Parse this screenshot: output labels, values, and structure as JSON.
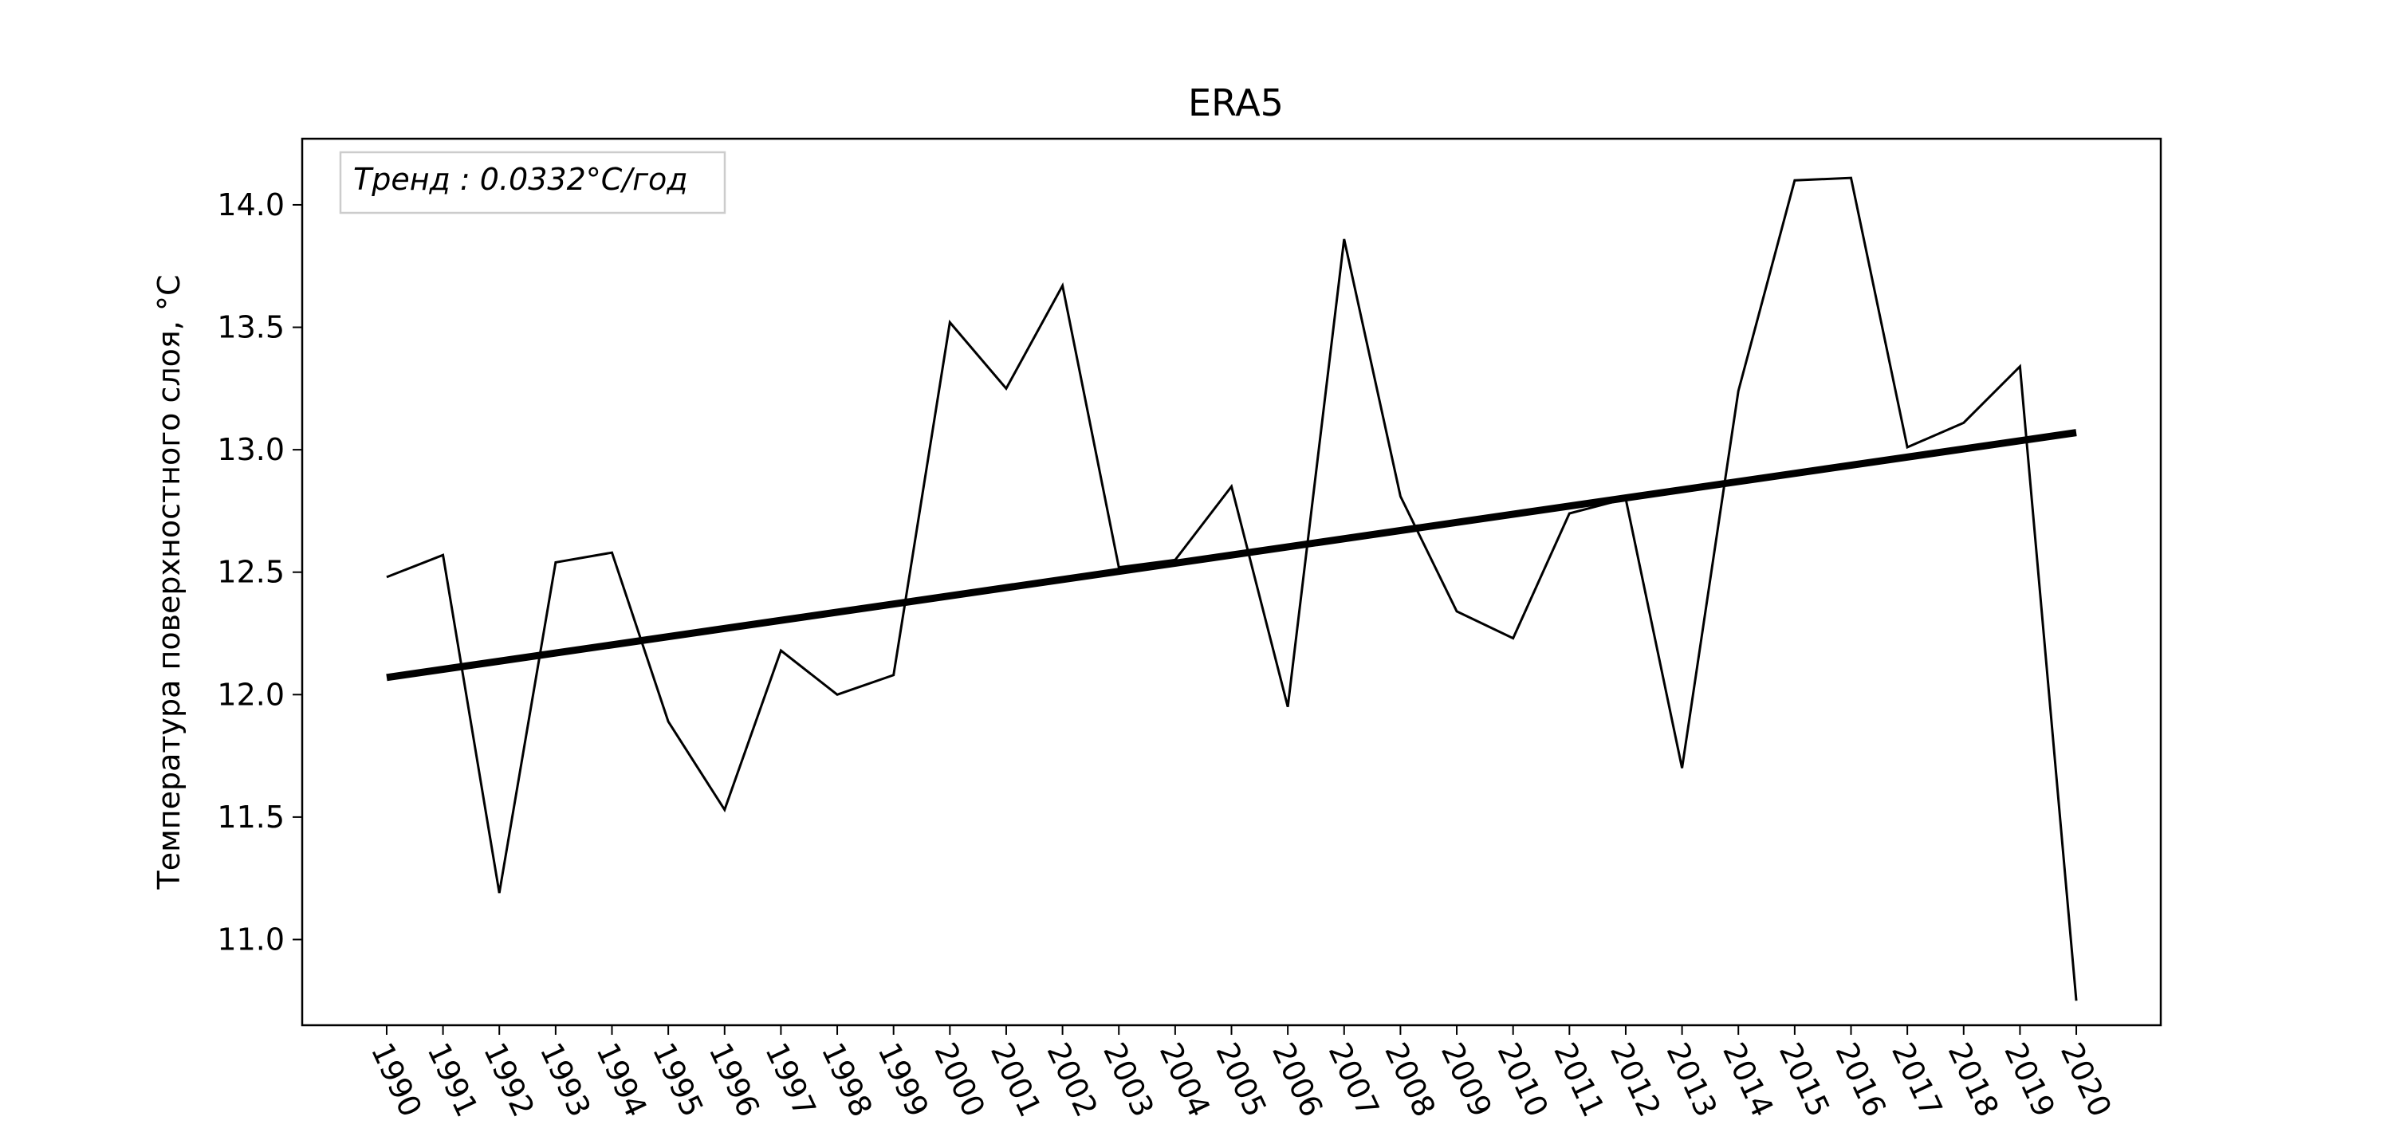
{
  "chart_data": {
    "type": "line",
    "title": "ERA5",
    "xlabel": "",
    "ylabel": "Температура поверхностного слоя, °C",
    "x": [
      1990,
      1991,
      1992,
      1993,
      1994,
      1995,
      1996,
      1997,
      1998,
      1999,
      2000,
      2001,
      2002,
      2003,
      2004,
      2005,
      2006,
      2007,
      2008,
      2009,
      2010,
      2011,
      2012,
      2013,
      2014,
      2015,
      2016,
      2017,
      2018,
      2019,
      2020
    ],
    "x_tick_labels": [
      "1990",
      "1991",
      "1992",
      "1993",
      "1994",
      "1995",
      "1996",
      "1997",
      "1998",
      "1999",
      "2000",
      "2001",
      "2002",
      "2003",
      "2004",
      "2005",
      "2006",
      "2007",
      "2008",
      "2009",
      "2010",
      "2011",
      "2012",
      "2013",
      "2014",
      "2015",
      "2016",
      "2017",
      "2018",
      "2019",
      "2020"
    ],
    "y_ticks": [
      11.0,
      11.5,
      12.0,
      12.5,
      13.0,
      13.5,
      14.0
    ],
    "y_tick_labels": [
      "11.0",
      "11.5",
      "12.0",
      "12.5",
      "13.0",
      "13.5",
      "14.0"
    ],
    "ylim": [
      10.65,
      14.27
    ],
    "xlim": [
      1988.5,
      2021.5
    ],
    "series": [
      {
        "name": "temperature",
        "values": [
          12.48,
          12.57,
          11.19,
          12.54,
          12.58,
          11.89,
          11.53,
          12.18,
          12.0,
          12.08,
          13.52,
          13.25,
          13.67,
          12.52,
          12.55,
          12.85,
          11.95,
          13.86,
          12.81,
          12.34,
          12.23,
          12.74,
          12.8,
          11.7,
          13.24,
          14.1,
          14.11,
          13.01,
          13.11,
          13.34,
          10.75
        ],
        "color": "#000000"
      },
      {
        "name": "trend",
        "values": [
          12.07,
          13.07
        ],
        "x": [
          1990,
          2020
        ],
        "color": "#000000"
      }
    ],
    "legend": {
      "text": "Тренд : 0.0332°C/год",
      "position": "top-left"
    }
  }
}
